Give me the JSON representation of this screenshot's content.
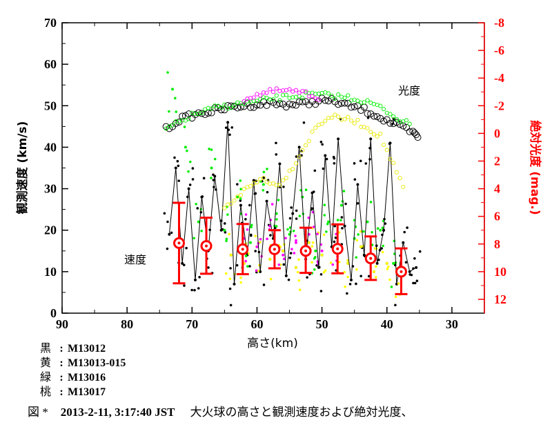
{
  "chart_data": {
    "type": "scatter",
    "xlabel": "高さ(km)",
    "ylabel_left": "観測速度 (km/s)",
    "ylabel_right": "絶対光度 (mag.)",
    "xlim": [
      90,
      25
    ],
    "xticks": [
      "90",
      "80",
      "70",
      "60",
      "50",
      "40",
      "30"
    ],
    "ylim_left": [
      0,
      70
    ],
    "yticks_left": [
      "0",
      "10",
      "20",
      "30",
      "40",
      "50",
      "60",
      "70"
    ],
    "ylim_right": [
      -8,
      13
    ],
    "yticks_right": [
      "-8",
      "-6",
      "-4",
      "-2",
      "0",
      "2",
      "4",
      "6",
      "8",
      "10",
      "12"
    ],
    "annotations": [
      {
        "text": "光度",
        "x": 37,
        "y": 53
      },
      {
        "text": "速度",
        "x": 82,
        "y": 13
      }
    ],
    "colors": {
      "black": "#000000",
      "yellow": "#ffff00",
      "green": "#00ee00",
      "magenta": "#ff00ff",
      "red": "#ff0000"
    },
    "mean_velocity": {
      "x": [
        72,
        67.8,
        62.2,
        57.3,
        52.5,
        47.6,
        42.5,
        37.8
      ],
      "y": [
        16.9,
        16.2,
        15.4,
        15.4,
        15.0,
        15.5,
        13.2,
        10.0
      ],
      "err_low": [
        7.2,
        9.5,
        9.4,
        10.8,
        9.7,
        9.6,
        8.0,
        4.6
      ],
      "err_high": [
        26.6,
        23.0,
        21.5,
        20.0,
        20.6,
        21.4,
        18.5,
        15.6
      ]
    },
    "series": [
      {
        "name": "M13012",
        "color": "#000000",
        "kind": "magnitude",
        "x": [
          74,
          72,
          70,
          68,
          66,
          64,
          62,
          60,
          58,
          56,
          54,
          52,
          50,
          48,
          46,
          44,
          42,
          40,
          38,
          36,
          35
        ],
        "mag": [
          -0.3,
          -1.0,
          -1.3,
          -1.5,
          -1.7,
          -1.9,
          -2.0,
          -2.1,
          -2.2,
          -2.1,
          -2.1,
          -2.2,
          -2.4,
          -2.3,
          -2.0,
          -1.8,
          -1.4,
          -0.9,
          -0.5,
          0.0,
          0.3
        ],
        "velocity_x": [
          73.5,
          72.5,
          71.5,
          70.5,
          69.5,
          68.5,
          67.5,
          66.5,
          65.5,
          64.5,
          63.5,
          62.5,
          61.5,
          60.5,
          59.5,
          58.5,
          57.5,
          56.5,
          55.5,
          54.5,
          53.5,
          52.5,
          51.5,
          50.5,
          49.5,
          48.5,
          47.5,
          46.5,
          45.5,
          44.5,
          43.5,
          42.5,
          41.5,
          40.5,
          39.5,
          38.5,
          37.5,
          36.5,
          35.5
        ],
        "velocity_y": [
          19,
          35,
          12,
          30,
          8,
          28,
          15,
          33,
          20,
          46,
          7,
          26,
          14,
          32,
          10,
          27,
          18,
          36,
          9,
          24,
          40,
          13,
          29,
          11,
          38,
          16,
          42,
          21,
          8,
          31,
          14,
          42,
          12,
          20,
          41,
          7,
          17,
          10,
          11
        ]
      },
      {
        "name": "M13013-015",
        "color": "#ffff00",
        "kind": "magnitude",
        "x": [
          65,
          63,
          61,
          59,
          57,
          55,
          53,
          51,
          49,
          47,
          45,
          43,
          41,
          39,
          37
        ],
        "mag": [
          5.5,
          4.5,
          3.8,
          3.2,
          3.8,
          2.8,
          1.2,
          -0.4,
          -1.2,
          -1.1,
          -0.9,
          -0.4,
          0.2,
          2.3,
          4.5
        ],
        "velocity_x": [
          64,
          62,
          60,
          58,
          56,
          54,
          52,
          50,
          48,
          46,
          44,
          42,
          40,
          38
        ],
        "velocity_y": [
          14,
          12,
          16,
          13,
          15,
          11,
          17,
          14,
          15,
          12,
          16,
          10,
          12,
          9
        ]
      },
      {
        "name": "M13016",
        "color": "#00ee00",
        "kind": "magnitude",
        "x": [
          74,
          72,
          70,
          68,
          66,
          64,
          62,
          60,
          58,
          56,
          54,
          52,
          50,
          48,
          46,
          44,
          42,
          40,
          38,
          36
        ],
        "mag": [
          -0.3,
          -0.8,
          -1.3,
          -1.6,
          -1.9,
          -2.0,
          -2.2,
          -2.3,
          -2.5,
          -2.6,
          -2.7,
          -2.8,
          -2.8,
          -2.7,
          -2.6,
          -2.4,
          -2.1,
          -1.6,
          -1.0,
          -0.5
        ],
        "velocity_x": [
          73,
          71,
          69,
          67,
          65,
          63,
          61,
          59,
          57,
          55,
          53,
          51,
          49,
          47,
          45,
          43,
          41,
          39
        ],
        "velocity_y": [
          54,
          40,
          22,
          35,
          20,
          28,
          17,
          31,
          24,
          19,
          28,
          15,
          22,
          26,
          18,
          22,
          20,
          12
        ]
      },
      {
        "name": "M13017",
        "color": "#ff00ff",
        "kind": "magnitude",
        "x": [
          62,
          60,
          58,
          56,
          54,
          52,
          50
        ],
        "mag": [
          -2.5,
          -2.8,
          -3.0,
          -3.1,
          -3.0,
          -2.8,
          -2.5
        ],
        "velocity_x": [
          62,
          60,
          58,
          56,
          54,
          52,
          50,
          48
        ],
        "velocity_y": [
          18,
          16,
          21,
          14,
          17,
          19,
          15,
          16
        ]
      }
    ]
  },
  "legend": [
    {
      "key": "黒",
      "sep": ":",
      "value": "M13012"
    },
    {
      "key": "黄",
      "sep": ":",
      "value": "M13013-015"
    },
    {
      "key": "緑",
      "sep": ":",
      "value": "M13016"
    },
    {
      "key": "桃",
      "sep": ":",
      "value": "M13017"
    }
  ],
  "caption": {
    "fig": "図 *",
    "date": "2013-2-11, 3:17:40 JST",
    "desc": "大火球の高さと観測速度および絶対光度、"
  }
}
